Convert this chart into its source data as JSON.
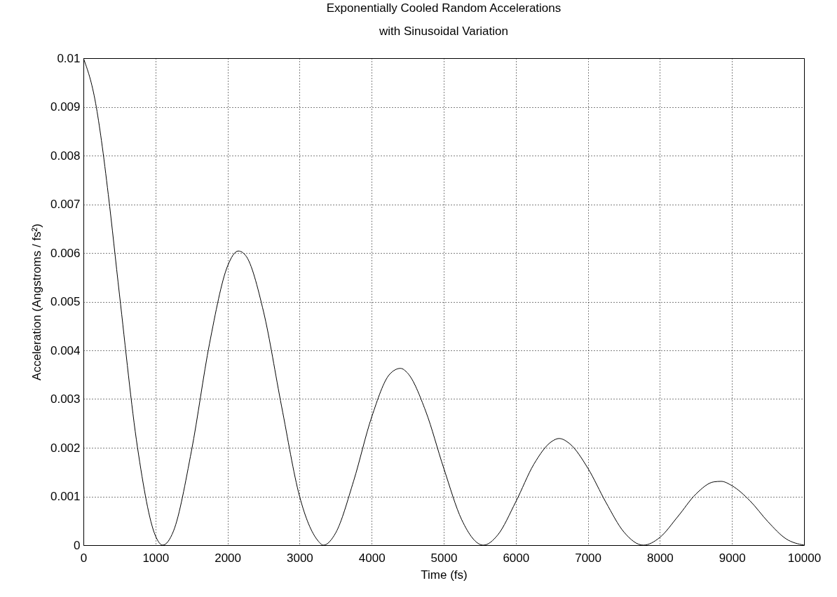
{
  "chart_data": {
    "type": "line",
    "title": "Exponentially Cooled Random Accelerations\nwith Sinusoidal Variation",
    "xlabel": "Time (fs)",
    "ylabel": "Acceleration (Angstroms / fs²)",
    "x": [
      0,
      170,
      250,
      345,
      500,
      750,
      1000,
      1100,
      1250,
      1500,
      1750,
      2000,
      2150,
      2250,
      2500,
      2750,
      3000,
      3250,
      3330,
      3500,
      3750,
      4000,
      4250,
      4400,
      4500,
      4750,
      5000,
      5250,
      5550,
      5750,
      6000,
      6250,
      6500,
      6600,
      6750,
      7000,
      7250,
      7500,
      7770,
      8000,
      8250,
      8500,
      8750,
      8850,
      9000,
      9250,
      9500,
      9750,
      10000
    ],
    "series": [
      {
        "color": "#000000",
        "values": [
          0.01,
          0.00907,
          0.00831,
          0.0072,
          0.00515,
          0.00201,
          0.00019,
          0,
          0.00029,
          0.00194,
          0.00414,
          0.00573,
          0.00604,
          0.00595,
          0.00479,
          0.00285,
          0.001,
          0.0001,
          0,
          0.00025,
          0.00132,
          0.00263,
          0.00351,
          0.00363,
          0.00353,
          0.00275,
          0.00158,
          0.00052,
          0,
          0.00021,
          0.00089,
          0.00166,
          0.00213,
          0.00219,
          0.00208,
          0.00158,
          0.00088,
          0.00027,
          0,
          0.00016,
          0.00059,
          0.00105,
          0.0013,
          0.00131,
          0.00122,
          0.00091,
          0.00048,
          0.00013,
          0
        ]
      }
    ],
    "xlim": [
      0,
      10000
    ],
    "xticks": [
      0,
      1000,
      2000,
      3000,
      4000,
      5000,
      6000,
      7000,
      8000,
      9000,
      10000
    ],
    "ylim": [
      0,
      0.01
    ],
    "yticks": [
      0,
      0.001,
      0.002,
      0.003,
      0.004,
      0.005,
      0.006,
      0.007,
      0.008,
      0.009,
      0.01
    ],
    "grid": true,
    "marker": "none",
    "line_style": "solid"
  }
}
